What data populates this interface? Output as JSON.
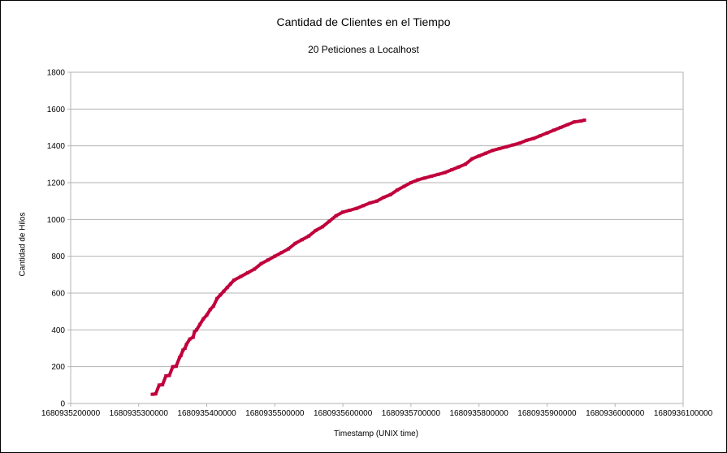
{
  "chart_data": {
    "type": "scatter",
    "title": "Cantidad de Clientes en el Tiempo",
    "subtitle": "20 Peticiones a Localhost",
    "xlabel": "Timestamp (UNIX time)",
    "ylabel": "Cantidad de Hilos",
    "xlim": [
      1680935200000,
      1680936100000
    ],
    "ylim": [
      0,
      1800
    ],
    "xticks": [
      1680935200000,
      1680935300000,
      1680935400000,
      1680935500000,
      1680935600000,
      1680935700000,
      1680935800000,
      1680935900000,
      1680936000000,
      1680936100000
    ],
    "yticks": [
      0,
      200,
      400,
      600,
      800,
      1000,
      1200,
      1400,
      1600,
      1800
    ],
    "grid": "horizontal",
    "marker_color": "#c0003c",
    "series": [
      {
        "points": [
          [
            1680935320000,
            50
          ],
          [
            1680935325000,
            52
          ],
          [
            1680935330000,
            100
          ],
          [
            1680935335000,
            102
          ],
          [
            1680935340000,
            150
          ],
          [
            1680935345000,
            152
          ],
          [
            1680935350000,
            200
          ],
          [
            1680935355000,
            202
          ],
          [
            1680935360000,
            250
          ],
          [
            1680935362000,
            260
          ],
          [
            1680935365000,
            290
          ],
          [
            1680935368000,
            300
          ],
          [
            1680935370000,
            320
          ],
          [
            1680935375000,
            350
          ],
          [
            1680935380000,
            360
          ],
          [
            1680935382000,
            390
          ],
          [
            1680935385000,
            400
          ],
          [
            1680935390000,
            430
          ],
          [
            1680935395000,
            460
          ],
          [
            1680935400000,
            480
          ],
          [
            1680935405000,
            510
          ],
          [
            1680935410000,
            530
          ],
          [
            1680935415000,
            570
          ],
          [
            1680935420000,
            590
          ],
          [
            1680935425000,
            610
          ],
          [
            1680935430000,
            630
          ],
          [
            1680935435000,
            650
          ],
          [
            1680935440000,
            670
          ],
          [
            1680935450000,
            690
          ],
          [
            1680935460000,
            710
          ],
          [
            1680935470000,
            730
          ],
          [
            1680935480000,
            760
          ],
          [
            1680935490000,
            780
          ],
          [
            1680935500000,
            800
          ],
          [
            1680935510000,
            820
          ],
          [
            1680935520000,
            840
          ],
          [
            1680935530000,
            870
          ],
          [
            1680935540000,
            890
          ],
          [
            1680935550000,
            910
          ],
          [
            1680935560000,
            940
          ],
          [
            1680935570000,
            960
          ],
          [
            1680935580000,
            990
          ],
          [
            1680935590000,
            1020
          ],
          [
            1680935600000,
            1040
          ],
          [
            1680935610000,
            1050
          ],
          [
            1680935620000,
            1060
          ],
          [
            1680935630000,
            1075
          ],
          [
            1680935640000,
            1090
          ],
          [
            1680935650000,
            1100
          ],
          [
            1680935660000,
            1120
          ],
          [
            1680935670000,
            1135
          ],
          [
            1680935680000,
            1160
          ],
          [
            1680935690000,
            1180
          ],
          [
            1680935700000,
            1200
          ],
          [
            1680935710000,
            1215
          ],
          [
            1680935720000,
            1225
          ],
          [
            1680935730000,
            1235
          ],
          [
            1680935740000,
            1245
          ],
          [
            1680935750000,
            1255
          ],
          [
            1680935760000,
            1270
          ],
          [
            1680935770000,
            1285
          ],
          [
            1680935780000,
            1300
          ],
          [
            1680935790000,
            1330
          ],
          [
            1680935800000,
            1345
          ],
          [
            1680935810000,
            1360
          ],
          [
            1680935820000,
            1375
          ],
          [
            1680935830000,
            1385
          ],
          [
            1680935840000,
            1395
          ],
          [
            1680935850000,
            1405
          ],
          [
            1680935860000,
            1415
          ],
          [
            1680935870000,
            1430
          ],
          [
            1680935880000,
            1440
          ],
          [
            1680935890000,
            1455
          ],
          [
            1680935900000,
            1470
          ],
          [
            1680935910000,
            1485
          ],
          [
            1680935920000,
            1500
          ],
          [
            1680935930000,
            1515
          ],
          [
            1680935940000,
            1530
          ],
          [
            1680935950000,
            1535
          ],
          [
            1680935955000,
            1540
          ]
        ]
      }
    ]
  }
}
